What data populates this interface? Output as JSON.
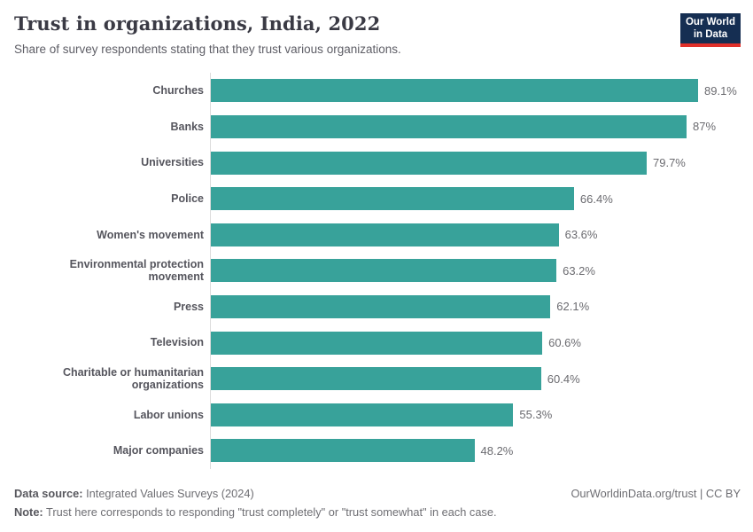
{
  "header": {
    "title": "Trust in organizations, India, 2022",
    "subtitle": "Share of survey respondents stating that they trust various organizations.",
    "logo": {
      "line1": "Our World",
      "line2": "in Data",
      "bg_color": "#152e52",
      "accent_color": "#e0302a"
    }
  },
  "chart_data": {
    "type": "bar",
    "orientation": "horizontal",
    "title": "Trust in organizations, India, 2022",
    "categories": [
      "Churches",
      "Banks",
      "Universities",
      "Police",
      "Women's movement",
      "Environmental protection movement",
      "Press",
      "Television",
      "Charitable or humanitarian organizations",
      "Labor unions",
      "Major companies"
    ],
    "values": [
      89.1,
      87,
      79.7,
      66.4,
      63.6,
      63.2,
      62.1,
      60.6,
      60.4,
      55.3,
      48.2
    ],
    "value_labels": [
      "89.1%",
      "87%",
      "79.7%",
      "66.4%",
      "63.6%",
      "63.2%",
      "62.1%",
      "60.6%",
      "60.4%",
      "55.3%",
      "48.2%"
    ],
    "unit": "%",
    "xlim": [
      0,
      89.1
    ],
    "bar_color": "#38a29a",
    "axis_line_color": "#dcdcdc",
    "grid": false,
    "legend": "none"
  },
  "footer": {
    "datasource_label": "Data source:",
    "datasource_text": " Integrated Values Surveys (2024)",
    "url_text": "OurWorldinData.org/trust | CC BY",
    "note_label": "Note:",
    "note_text": " Trust here corresponds to responding \"trust completely\" or \"trust somewhat\" in each case."
  }
}
